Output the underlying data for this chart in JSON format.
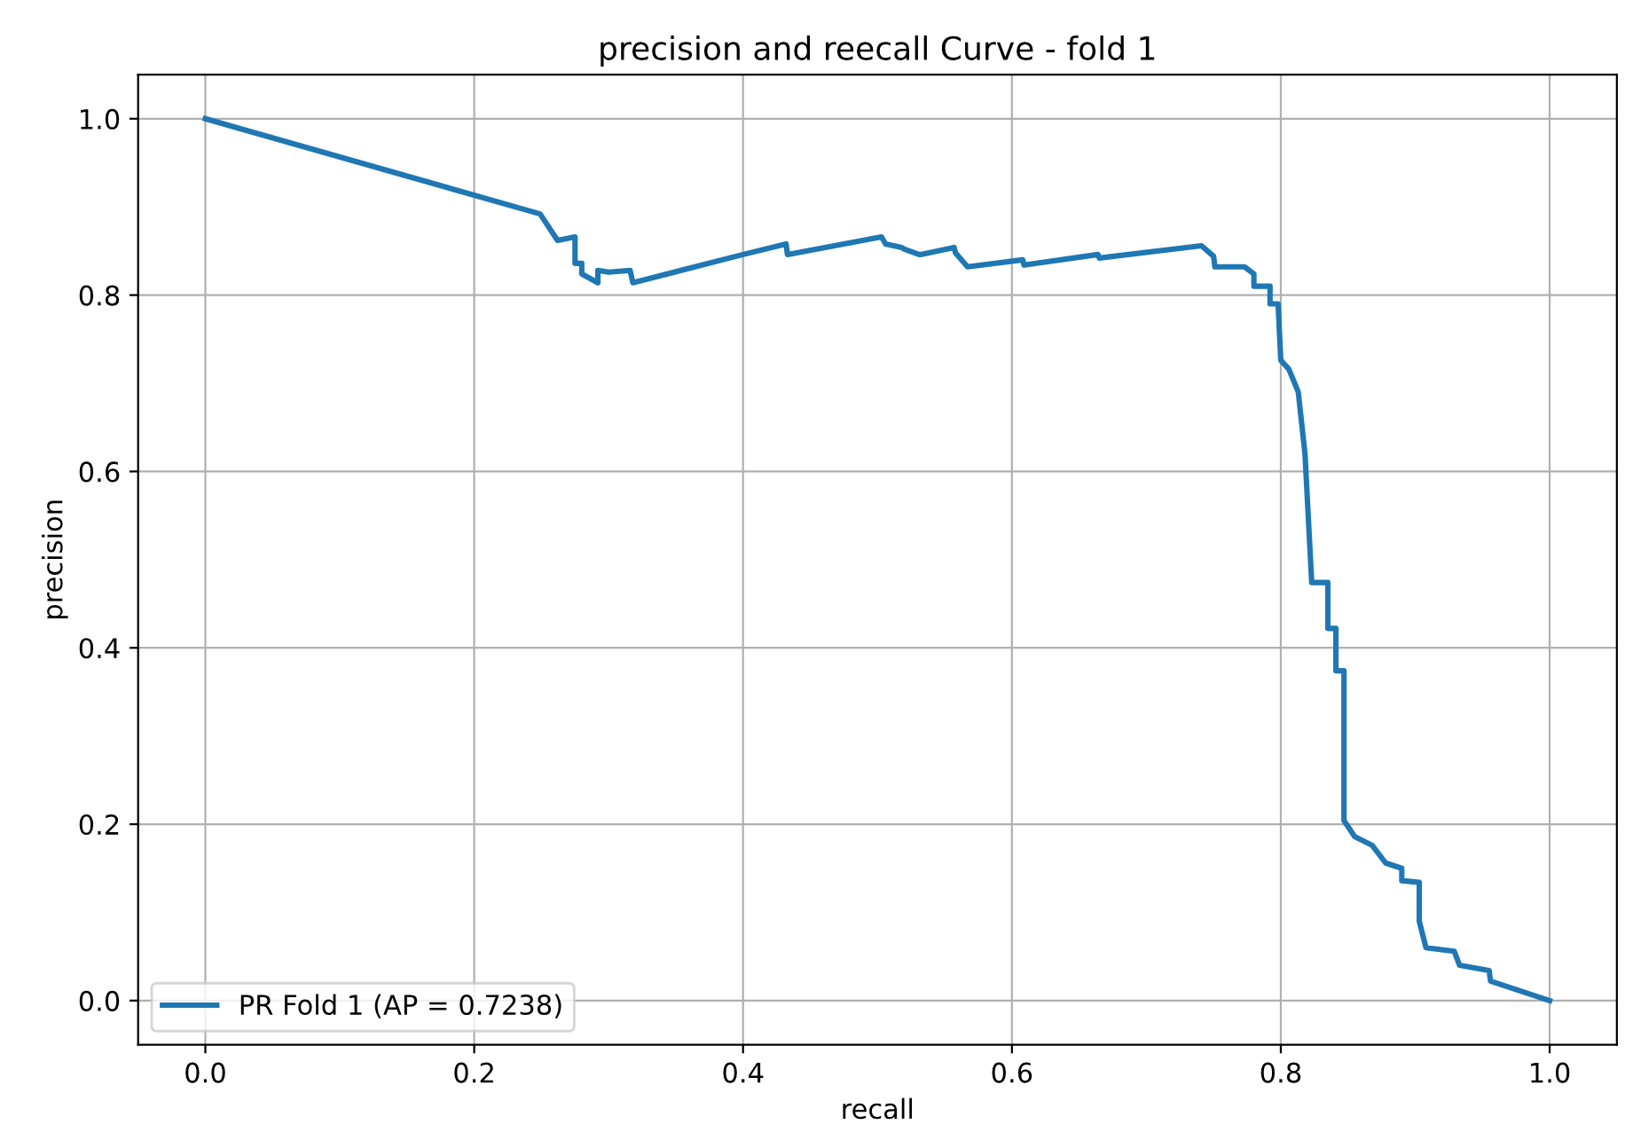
{
  "chart_data": {
    "type": "line",
    "title": "precision and reecall Curve - fold 1",
    "xlabel": "recall",
    "ylabel": "precision",
    "xlim": [
      -0.05,
      1.05
    ],
    "ylim": [
      -0.05,
      1.05
    ],
    "xticks": [
      {
        "value": 0,
        "label": "0.0"
      },
      0.2,
      0.4,
      0.6,
      0.8,
      {
        "value": 1,
        "label": "1.0"
      }
    ],
    "yticks": [
      {
        "value": 0,
        "label": "0.0"
      },
      0.2,
      0.4,
      0.6,
      0.8,
      {
        "value": 1,
        "label": "1.0"
      }
    ],
    "grid": true,
    "legend": "bottom left",
    "marker": "none",
    "line_style": "solid",
    "series": [
      {
        "name": "PR Fold 1 (AP = 0.7238)",
        "color": "#1f77b4",
        "x": [
          0,
          0.249,
          0.262,
          0.275,
          0.275,
          0.28,
          0.28,
          0.292,
          0.292,
          0.3,
          0.316,
          0.318,
          0.4,
          0.432,
          0.433,
          0.503,
          0.506,
          0.518,
          0.52,
          0.531,
          0.532,
          0.557,
          0.558,
          0.567,
          0.608,
          0.609,
          0.664,
          0.665,
          0.741,
          0.75,
          0.751,
          0.773,
          0.78,
          0.78,
          0.792,
          0.792,
          0.798,
          0.8,
          0.806,
          0.806,
          0.813,
          0.813,
          0.818,
          0.818,
          0.823,
          0.823,
          0.835,
          0.835,
          0.841,
          0.841,
          0.847,
          0.847,
          0.855,
          0.868,
          0.878,
          0.89,
          0.89,
          0.903,
          0.903,
          0.908,
          0.929,
          0.933,
          0.955,
          0.956,
          0.976,
          1.0
        ],
        "values": [
          1.0,
          0.892,
          0.862,
          0.866,
          0.836,
          0.836,
          0.824,
          0.814,
          0.828,
          0.826,
          0.828,
          0.814,
          0.846,
          0.858,
          0.846,
          0.866,
          0.858,
          0.854,
          0.852,
          0.846,
          0.846,
          0.854,
          0.848,
          0.832,
          0.84,
          0.834,
          0.846,
          0.842,
          0.856,
          0.844,
          0.832,
          0.832,
          0.824,
          0.81,
          0.81,
          0.79,
          0.79,
          0.726,
          0.716,
          0.716,
          0.69,
          0.69,
          0.62,
          0.62,
          0.474,
          0.474,
          0.474,
          0.422,
          0.422,
          0.374,
          0.374,
          0.204,
          0.186,
          0.176,
          0.156,
          0.15,
          0.136,
          0.134,
          0.09,
          0.06,
          0.056,
          0.04,
          0.034,
          0.022,
          0.012,
          0.0
        ]
      }
    ]
  }
}
